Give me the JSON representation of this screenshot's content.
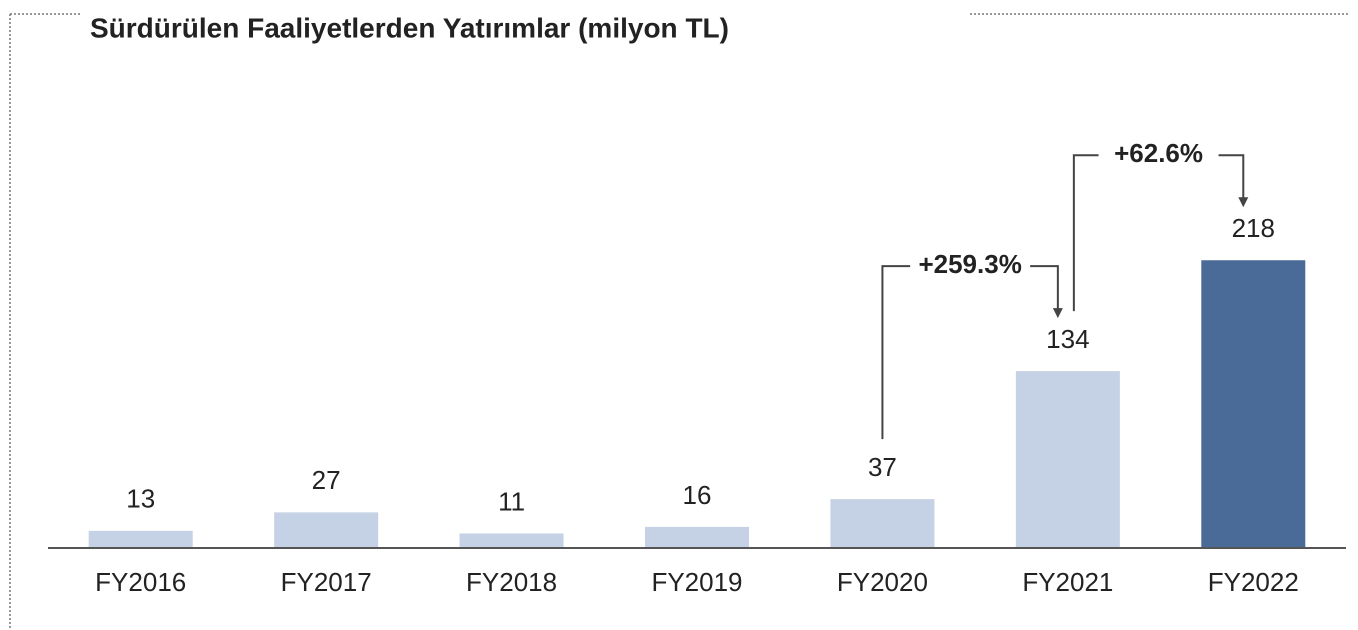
{
  "chart_data": {
    "type": "bar",
    "title": "Sürdürülen Faaliyetlerden Yatırımlar (milyon TL)",
    "categories": [
      "FY2016",
      "FY2017",
      "FY2018",
      "FY2019",
      "FY2020",
      "FY2021",
      "FY2022"
    ],
    "values": [
      13,
      27,
      11,
      16,
      37,
      134,
      218
    ],
    "colors": [
      "#c5d1e4",
      "#c5d1e4",
      "#c5d1e4",
      "#c5d1e4",
      "#c5d1e4",
      "#c5d1e4",
      "#4a6b98"
    ],
    "ylim": [
      0,
      300
    ],
    "annotations": [
      {
        "text": "+259.3%",
        "from": "FY2020",
        "to": "FY2021"
      },
      {
        "text": "+62.6%",
        "from": "FY2021",
        "to": "FY2022"
      }
    ]
  }
}
